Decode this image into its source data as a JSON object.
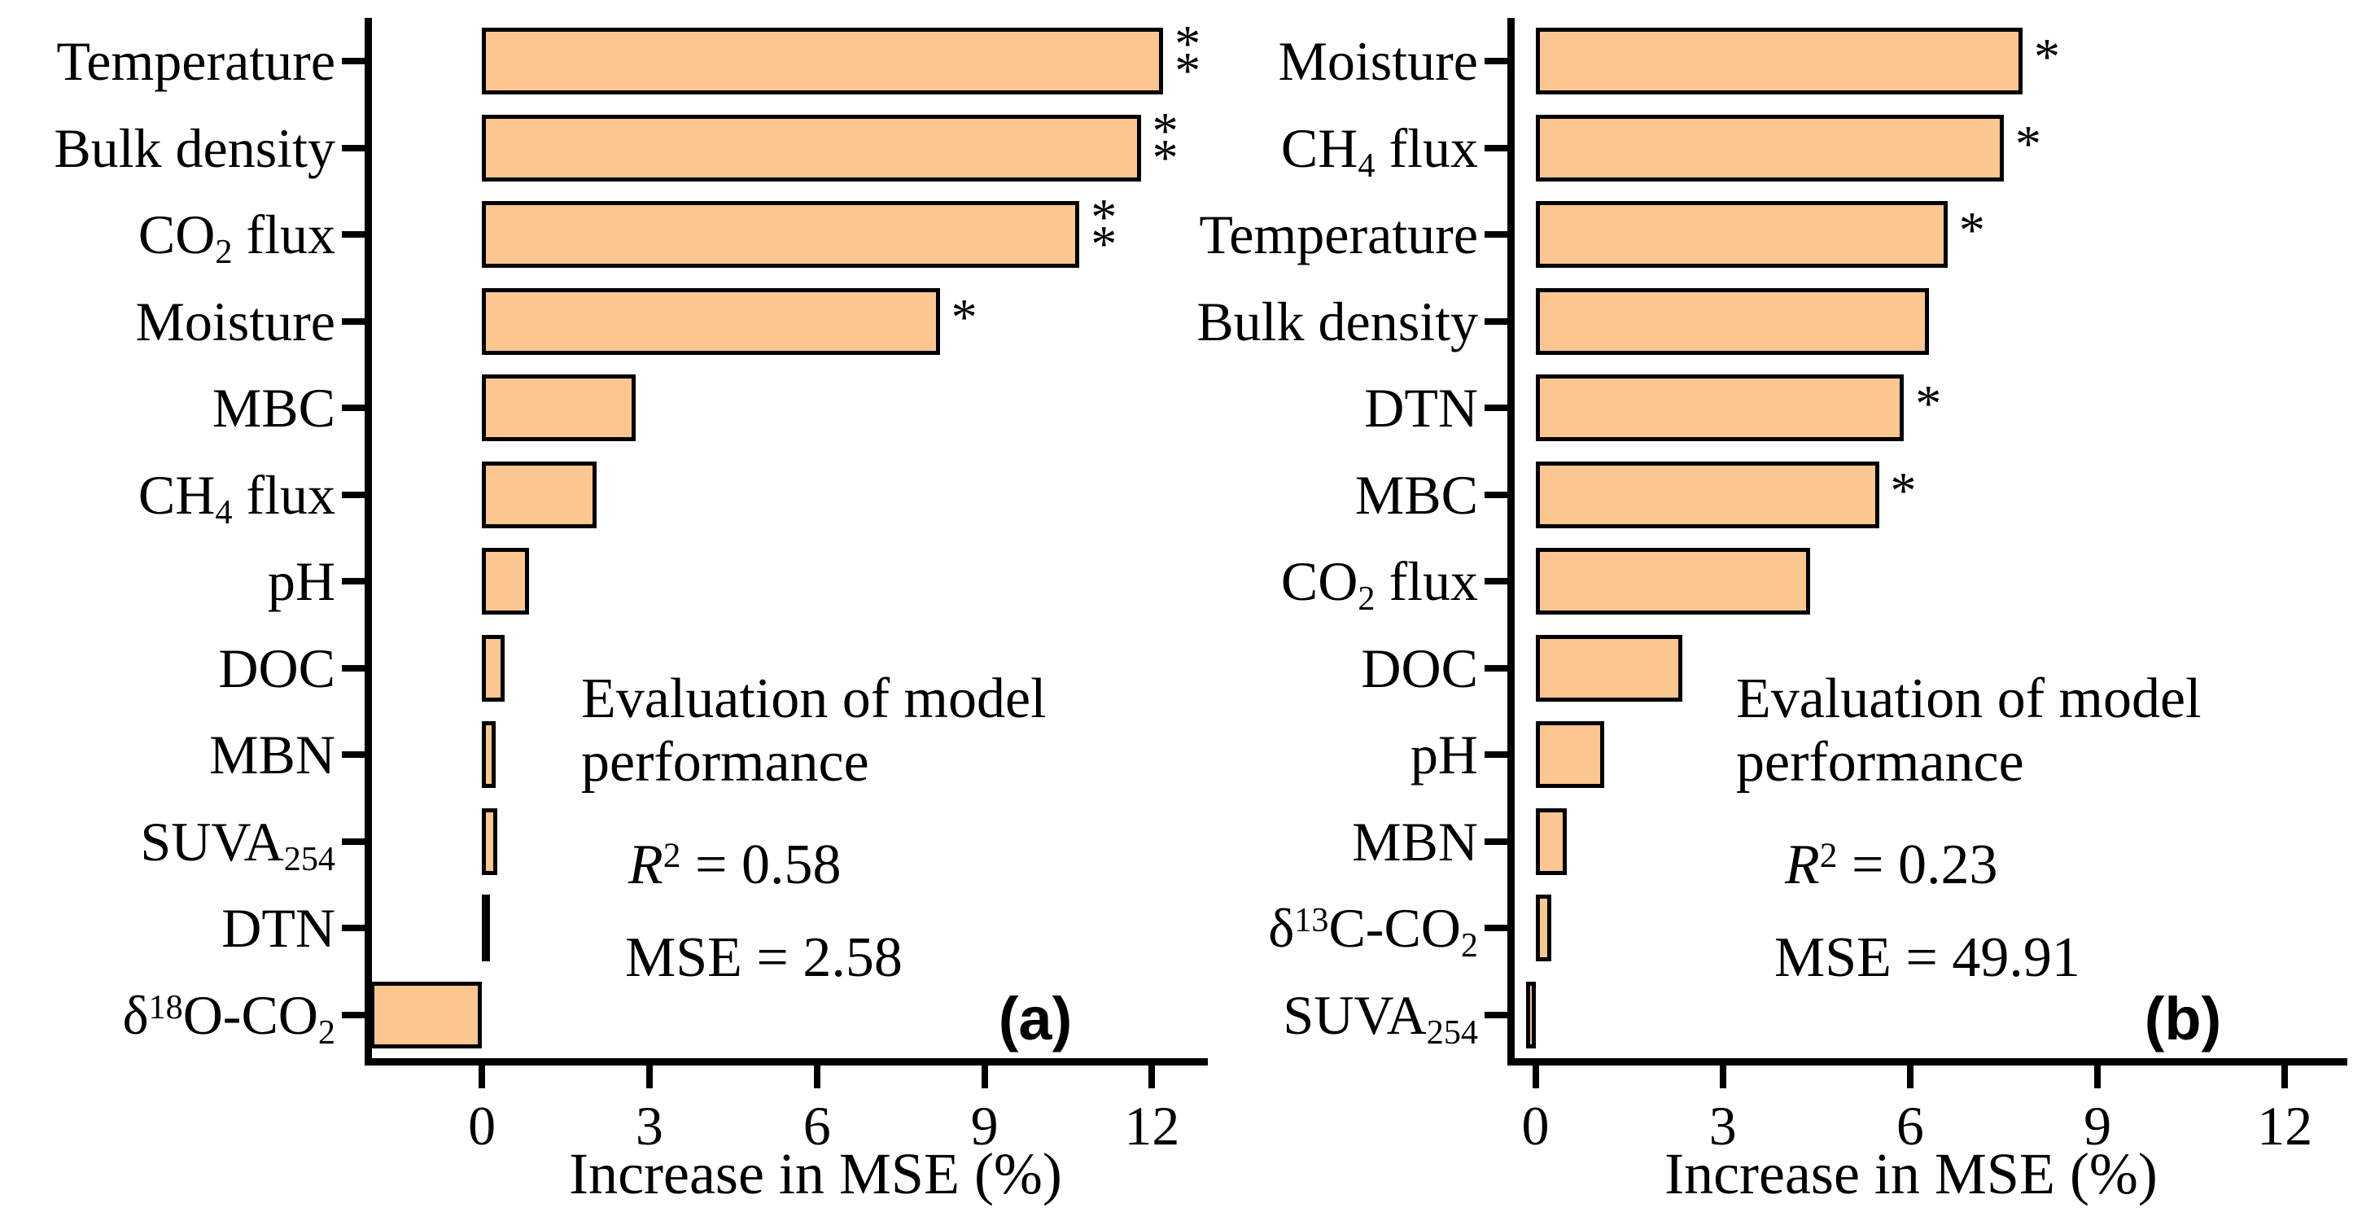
{
  "figure": {
    "background": "#ffffff",
    "bar_fill": "#FBC68F",
    "bar_border": "#000000",
    "axis_color": "#000000"
  },
  "chart_data": [
    {
      "type": "bar",
      "orientation": "horizontal",
      "panel_label": "(a)",
      "xlabel": "Increase in MSE (%)",
      "xticks": [
        0,
        3,
        6,
        9,
        12
      ],
      "xlim": [
        -2.1,
        13.0
      ],
      "grid": false,
      "categories": [
        "Temperature",
        "Bulk density",
        "CO_{2} flux",
        "Moisture",
        "MBC",
        "CH_{4} flux",
        "pH",
        "DOC",
        "MBN",
        "SUVA_{254}",
        "DTN",
        "δ^{18}O-CO_{2}"
      ],
      "values": [
        12.2,
        11.8,
        10.7,
        8.2,
        2.75,
        2.05,
        0.85,
        0.4,
        0.25,
        0.27,
        0.14,
        -2.0
      ],
      "significance": [
        "**",
        "**",
        "**",
        "*",
        "",
        "",
        "",
        "",
        "",
        "",
        "",
        ""
      ],
      "annotation": {
        "line1": "Evaluation of model",
        "line2": "performance",
        "r2": "//R//^{2} = 0.58",
        "mse": "MSE = 2.58"
      }
    },
    {
      "type": "bar",
      "orientation": "horizontal",
      "panel_label": "(b)",
      "xlabel": "Increase in MSE (%)",
      "xticks": [
        0,
        3,
        6,
        9,
        12
      ],
      "xlim": [
        -0.45,
        13.0
      ],
      "grid": false,
      "categories": [
        "Moisture",
        "CH_{4} flux",
        "Temperature",
        "Bulk density",
        "DTN",
        "MBC",
        "CO_{2} flux",
        "DOC",
        "pH",
        "MBN",
        "δ^{13}C-CO_{2}",
        "SUVA_{254}"
      ],
      "values": [
        7.8,
        7.5,
        6.6,
        6.3,
        5.9,
        5.5,
        4.4,
        2.35,
        1.1,
        0.5,
        0.25,
        -0.15
      ],
      "significance": [
        "*",
        "*",
        "*",
        "",
        "*",
        "*",
        "",
        "",
        "",
        "",
        "",
        ""
      ],
      "annotation": {
        "line1": "Evaluation of model",
        "line2": "performance",
        "r2": "//R//^{2} = 0.23",
        "mse": "MSE = 49.91"
      }
    }
  ]
}
